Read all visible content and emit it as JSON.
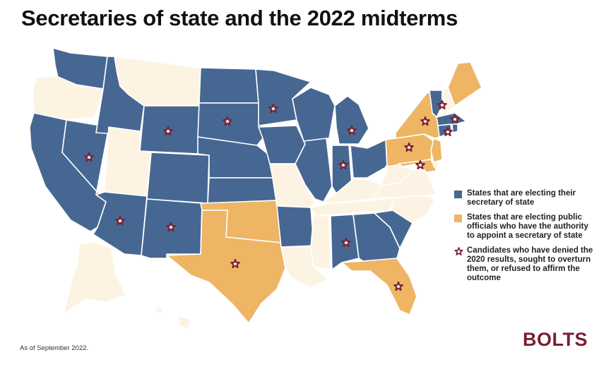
{
  "title": "Secretaries of state and the 2022 midterms",
  "legend": {
    "electing": "States that are electing their secretary of state",
    "appointing": "States that are electing public officials who have the authority to appoint a secretary of state",
    "deniers": "Candidates who have denied the 2020 results, sought to overturn them, or refused to affirm the outcome"
  },
  "footnote": "As of September 2022.",
  "logo": "BOLTS",
  "colors": {
    "electing": "#466792",
    "appointing": "#eeb565",
    "other": "#fcf3e3",
    "star": "#7a1f30"
  },
  "states": {
    "electing": [
      "WA",
      "ID",
      "NV",
      "CA",
      "AZ",
      "NM",
      "WY",
      "CO",
      "ND",
      "SD",
      "NE",
      "KS",
      "MN",
      "IA",
      "AR",
      "WI",
      "IL",
      "MI",
      "IN",
      "OH",
      "AL",
      "GA",
      "SC",
      "VT",
      "MA",
      "CT",
      "RI"
    ],
    "appointing": [
      "TX",
      "OK",
      "FL",
      "PA",
      "NY",
      "ME",
      "MD",
      "NJ"
    ],
    "other": [
      "OR",
      "MT",
      "UT",
      "MO",
      "LA",
      "MS",
      "TN",
      "KY",
      "WV",
      "VA",
      "NC",
      "NH",
      "DE",
      "AK",
      "HI"
    ]
  },
  "stars": [
    "NV",
    "AZ",
    "NM",
    "WY",
    "SD",
    "MN",
    "MI",
    "IN",
    "AL",
    "TX",
    "FL",
    "PA",
    "MD",
    "NY",
    "VT",
    "MA",
    "CT"
  ]
}
